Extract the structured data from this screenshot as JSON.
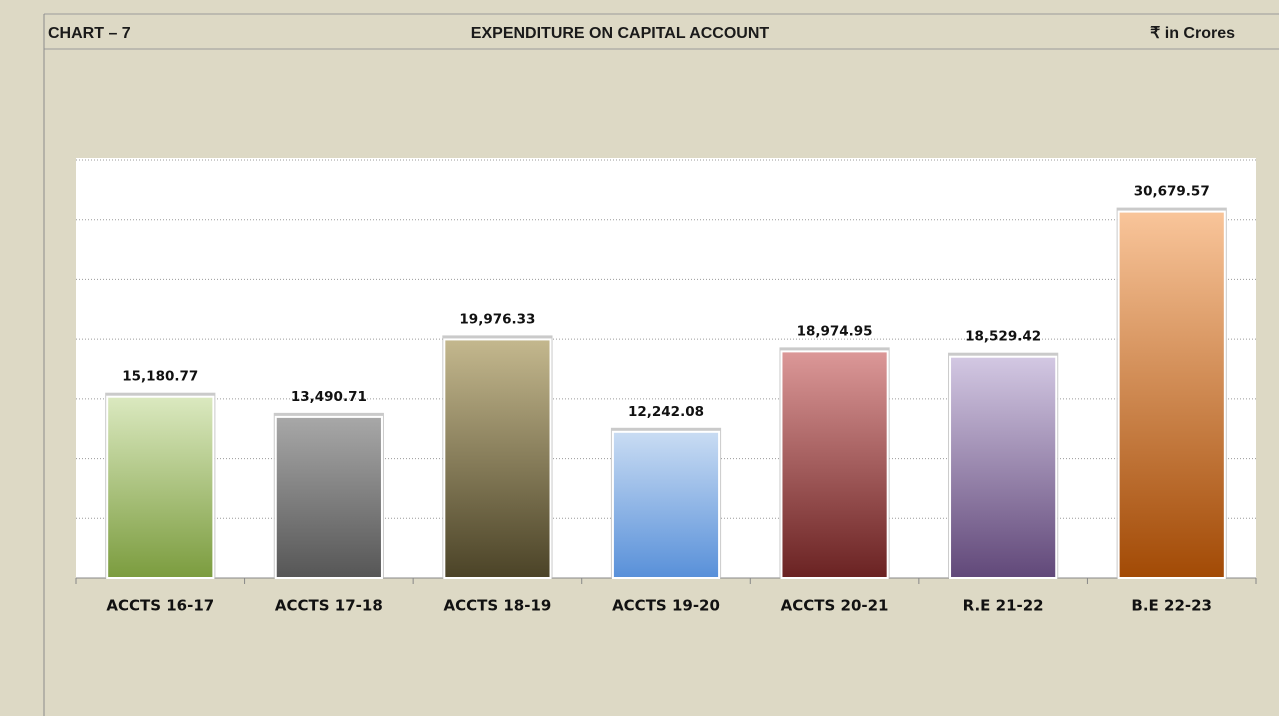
{
  "chart_data": {
    "type": "bar",
    "label": "CHART – 7",
    "title": "EXPENDITURE ON CAPITAL ACCOUNT",
    "unit": "₹ in Crores",
    "categories": [
      "ACCTS 16-17",
      "ACCTS 17-18",
      "ACCTS 18-19",
      "ACCTS 19-20",
      "ACCTS 20-21",
      "R.E 21-22",
      "B.E 22-23"
    ],
    "values": [
      15180.77,
      13490.71,
      19976.33,
      12242.08,
      18974.95,
      18529.42,
      30679.57
    ],
    "value_labels": [
      "15,180.77",
      "13,490.71",
      "19,976.33",
      "12,242.08",
      "18,974.95",
      "18,529.42",
      "30,679.57"
    ],
    "colors": [
      [
        "#dbe9c0",
        "#7b9c3e"
      ],
      [
        "#a8a8a8",
        "#565656"
      ],
      [
        "#c4b88e",
        "#4b4327"
      ],
      [
        "#c9dcf3",
        "#5890d9"
      ],
      [
        "#dc9898",
        "#6a2222"
      ],
      [
        "#d3c8e3",
        "#614879"
      ],
      [
        "#f9c59a",
        "#a24a05"
      ]
    ],
    "ylim": [
      0,
      35000
    ],
    "yticks": [
      0,
      5000,
      10000,
      15000,
      20000,
      25000,
      30000,
      35000
    ],
    "grid": true
  }
}
